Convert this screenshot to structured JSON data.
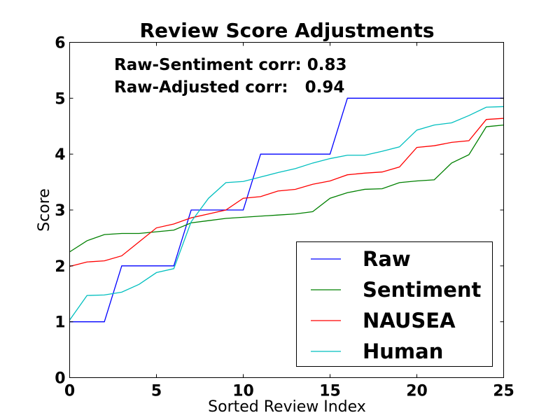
{
  "chart_data": {
    "type": "line",
    "title": "Review Score Adjustments",
    "xlabel": "Sorted Review Index",
    "ylabel": "Score",
    "xlim": [
      0,
      25
    ],
    "ylim": [
      0,
      6
    ],
    "xticks": [
      0,
      5,
      10,
      15,
      20,
      25
    ],
    "yticks": [
      0,
      1,
      2,
      3,
      4,
      5,
      6
    ],
    "grid": false,
    "legend_position": "lower-right",
    "annotations": [
      "Raw-Sentiment corr: 0.83",
      "Raw-Adjusted corr:   0.94"
    ],
    "x": [
      0,
      1,
      2,
      3,
      4,
      5,
      6,
      7,
      8,
      9,
      10,
      11,
      12,
      13,
      14,
      15,
      16,
      17,
      18,
      19,
      20,
      21,
      22,
      23,
      24,
      25
    ],
    "series": [
      {
        "name": "Raw",
        "color": "#0000ff",
        "values": [
          1,
          1,
          1,
          2,
          2,
          2,
          2,
          3,
          3,
          3,
          3,
          4,
          4,
          4,
          4,
          4,
          5,
          5,
          5,
          5,
          5,
          5,
          5,
          5,
          5,
          5
        ]
      },
      {
        "name": "Sentiment",
        "color": "#008000",
        "values": [
          2.25,
          2.45,
          2.56,
          2.58,
          2.58,
          2.61,
          2.64,
          2.77,
          2.81,
          2.85,
          2.87,
          2.89,
          2.91,
          2.93,
          2.97,
          3.21,
          3.31,
          3.37,
          3.38,
          3.49,
          3.52,
          3.54,
          3.84,
          3.99,
          4.49,
          4.52
        ]
      },
      {
        "name": "NAUSEA",
        "color": "#ff0000",
        "values": [
          1.99,
          2.07,
          2.09,
          2.18,
          2.43,
          2.68,
          2.75,
          2.86,
          2.93,
          3.0,
          3.21,
          3.24,
          3.34,
          3.37,
          3.46,
          3.52,
          3.63,
          3.66,
          3.68,
          3.77,
          4.12,
          4.15,
          4.21,
          4.24,
          4.62,
          4.64
        ]
      },
      {
        "name": "Human",
        "color": "#00bfbf",
        "values": [
          1.03,
          1.47,
          1.48,
          1.53,
          1.67,
          1.88,
          1.95,
          2.79,
          3.21,
          3.49,
          3.51,
          3.59,
          3.67,
          3.74,
          3.84,
          3.92,
          3.98,
          3.98,
          4.05,
          4.13,
          4.43,
          4.52,
          4.56,
          4.69,
          4.84,
          4.85
        ]
      }
    ]
  }
}
